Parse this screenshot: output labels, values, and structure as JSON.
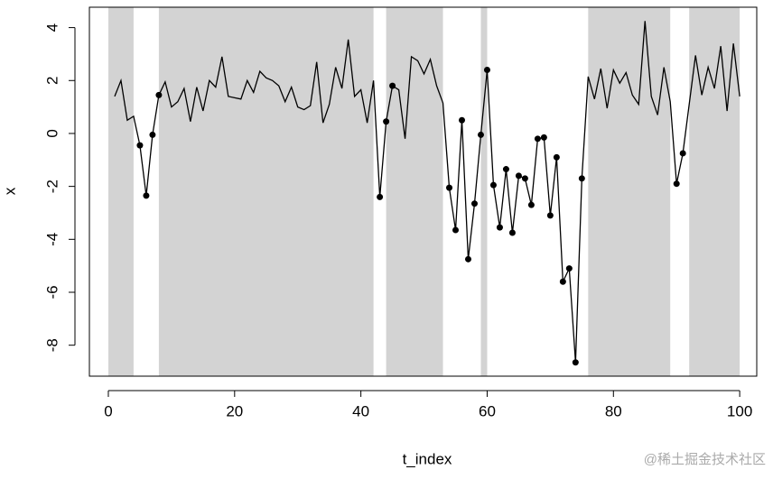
{
  "chart_data": {
    "type": "line",
    "x_label": "t_index",
    "y_label": "x",
    "x": [
      1,
      2,
      3,
      4,
      5,
      6,
      7,
      8,
      9,
      10,
      11,
      12,
      13,
      14,
      15,
      16,
      17,
      18,
      19,
      20,
      21,
      22,
      23,
      24,
      25,
      26,
      27,
      28,
      29,
      30,
      31,
      32,
      33,
      34,
      35,
      36,
      37,
      38,
      39,
      40,
      41,
      42,
      43,
      44,
      45,
      46,
      47,
      48,
      49,
      50,
      51,
      52,
      53,
      54,
      55,
      56,
      57,
      58,
      59,
      60,
      61,
      62,
      63,
      64,
      65,
      66,
      67,
      68,
      69,
      70,
      71,
      72,
      73,
      74,
      75,
      76,
      77,
      78,
      79,
      80,
      81,
      82,
      83,
      84,
      85,
      86,
      87,
      88,
      89,
      90,
      91,
      92,
      93,
      94,
      95,
      96,
      97,
      98,
      99,
      100
    ],
    "values": [
      1.4,
      2.0,
      0.5,
      0.65,
      -0.45,
      -2.35,
      -0.05,
      1.45,
      1.95,
      1.0,
      1.2,
      1.7,
      0.45,
      1.75,
      0.85,
      2.0,
      1.75,
      2.9,
      1.4,
      1.35,
      1.3,
      2.0,
      1.55,
      2.35,
      2.1,
      2.0,
      1.8,
      1.2,
      1.75,
      1.0,
      0.9,
      1.05,
      2.7,
      0.4,
      1.1,
      2.5,
      1.7,
      3.55,
      1.4,
      1.65,
      0.4,
      2.0,
      -2.4,
      0.45,
      1.8,
      1.65,
      -0.2,
      2.9,
      2.75,
      2.25,
      2.8,
      1.8,
      1.15,
      -2.05,
      -3.65,
      0.5,
      -4.75,
      -2.65,
      -0.05,
      2.4,
      -1.95,
      -3.55,
      -1.35,
      -3.75,
      -1.6,
      -1.7,
      -2.7,
      -0.2,
      -0.15,
      -3.1,
      -0.9,
      -5.6,
      -5.1,
      -8.65,
      -1.7,
      2.15,
      1.3,
      2.45,
      0.95,
      2.4,
      1.9,
      2.3,
      1.45,
      1.1,
      4.25,
      1.4,
      0.7,
      2.5,
      1.2,
      -1.9,
      -0.75,
      1.1,
      2.95,
      1.45,
      2.5,
      1.7,
      3.3,
      0.85,
      3.4,
      1.4
    ],
    "color": "#000000",
    "point_x": [
      5,
      6,
      7,
      8,
      43,
      44,
      45,
      54,
      55,
      56,
      57,
      58,
      59,
      60,
      61,
      62,
      63,
      64,
      65,
      66,
      67,
      68,
      69,
      70,
      71,
      72,
      73,
      74,
      75,
      90,
      91
    ],
    "shaded_regions": [
      [
        0,
        4
      ],
      [
        8,
        42
      ],
      [
        44,
        53
      ],
      [
        59,
        60
      ],
      [
        76,
        89
      ],
      [
        92,
        100
      ]
    ],
    "shade_color": "#d3d3d3",
    "xlim": [
      -3,
      102.7
    ],
    "ylim": [
      -9.17,
      4.77
    ],
    "xticks": [
      0,
      20,
      40,
      60,
      80,
      100
    ],
    "yticks": [
      -8,
      -6,
      -4,
      -2,
      0,
      2,
      4
    ],
    "watermark": "@稀土掘金技术社区"
  }
}
